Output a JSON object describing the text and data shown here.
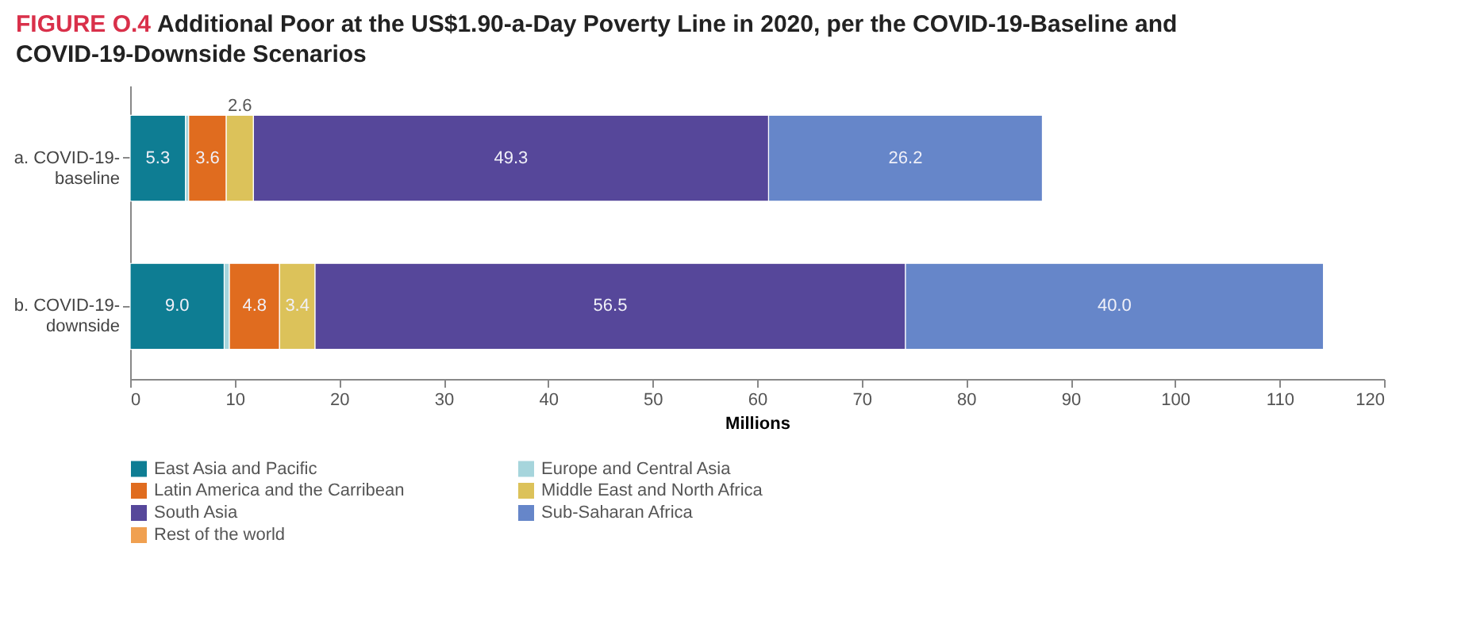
{
  "chart_data": {
    "type": "bar",
    "orientation": "horizontal",
    "stacked": true,
    "title": "FIGURE O.4 Additional Poor at the US$1.90-a-Day Poverty Line in 2020, per the COVID-19-Baseline and COVID-19-Downside Scenarios",
    "categories": [
      "a. COVID-19-baseline",
      "b. COVID-19-downside"
    ],
    "series": [
      {
        "name": "East Asia and Pacific",
        "color": "#0e7d93",
        "values": [
          5.3,
          9.0
        ],
        "value_labels": [
          "5.3",
          "9.0"
        ]
      },
      {
        "name": "Europe and Central Asia",
        "color": "#a6d5dc",
        "values": [
          0.3,
          0.5
        ],
        "value_labels": [
          null,
          null
        ]
      },
      {
        "name": "Latin America and the Carribean",
        "color": "#e06c1f",
        "values": [
          3.6,
          4.8
        ],
        "value_labels": [
          "3.6",
          "4.8"
        ]
      },
      {
        "name": "Middle East and North Africa",
        "color": "#dcc25a",
        "values": [
          2.6,
          3.4
        ],
        "value_labels": [
          "2.6",
          "3.4"
        ]
      },
      {
        "name": "South Asia",
        "color": "#56479a",
        "values": [
          49.3,
          56.5
        ],
        "value_labels": [
          "49.3",
          "56.5"
        ]
      },
      {
        "name": "Sub-Saharan Africa",
        "color": "#6686c9",
        "values": [
          26.2,
          40.0
        ],
        "value_labels": [
          "26.2",
          "40.0"
        ]
      },
      {
        "name": "Rest of the world",
        "color": "#f0a050",
        "values": [
          null,
          null
        ],
        "value_labels": [
          null,
          null
        ]
      }
    ],
    "xlabel": "Millions",
    "xlim": [
      0,
      120
    ],
    "xticks": [
      0,
      10,
      20,
      30,
      40,
      50,
      60,
      70,
      80,
      90,
      100,
      110,
      120
    ],
    "grid": false,
    "legend": "bottom"
  }
}
